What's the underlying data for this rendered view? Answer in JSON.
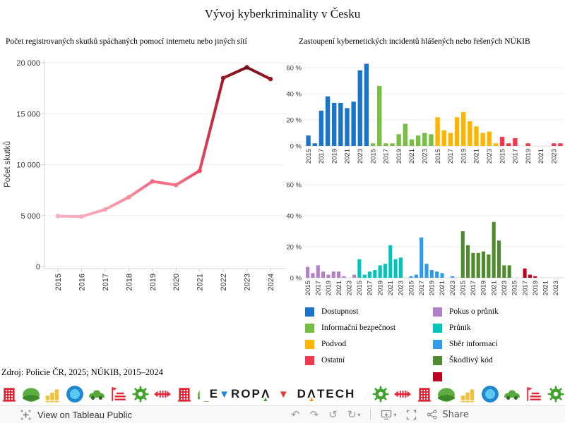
{
  "page_title": "Vývoj kyberkriminality v Česku",
  "source_note": "Zdroj: Policie ČR, 2025; NÚKIB, 2015–2024",
  "chart_data": [
    {
      "id": "line-chart",
      "type": "line",
      "title": "Počet registrovaných skutků spáchaných pomocí internetu nebo jiných sítí",
      "ylabel": "Počet skutků",
      "x": [
        2015,
        2016,
        2017,
        2018,
        2019,
        2020,
        2021,
        2022,
        2023,
        2024
      ],
      "values": [
        4950,
        4900,
        5600,
        6800,
        8350,
        8000,
        9400,
        18500,
        19550,
        18400
      ],
      "ylim": [
        0,
        20000
      ],
      "yticks": [
        0,
        5000,
        10000,
        15000,
        20000
      ],
      "ytick_labels": [
        "0",
        "5 000",
        "10 000",
        "15 000",
        "20 000"
      ],
      "grid": true,
      "point_colors": [
        "#F8AFBE",
        "#F8ACBC",
        "#F7A2B2",
        "#F48DA0",
        "#F06A80",
        "#F1758A",
        "#EC4763",
        "#9E1827",
        "#731019",
        "#9B1726"
      ]
    },
    {
      "id": "bars-top",
      "type": "bar",
      "title": "Zastoupení kybernetických incidentů hlášených nebo řešených NÚKIB",
      "categories": [
        2015,
        2016,
        2017,
        2018,
        2019,
        2020,
        2021,
        2022,
        2023,
        2024
      ],
      "ylim": [
        0,
        65
      ],
      "yticks": [
        0,
        20,
        40,
        60
      ],
      "ytick_labels": [
        "0 %",
        "20 %",
        "40 %",
        "60 %"
      ],
      "series": [
        {
          "name": "Dostupnost",
          "color": "#1A74C9",
          "values": [
            8,
            2,
            27,
            38,
            33,
            33,
            29,
            34,
            58,
            63
          ]
        },
        {
          "name": "Informační bezpečnost",
          "color": "#77BE43",
          "values": [
            2,
            46,
            2,
            2,
            9,
            17,
            5,
            8,
            10,
            9
          ]
        },
        {
          "name": "Podvod",
          "color": "#FFB400",
          "values": [
            22,
            12,
            10,
            22,
            26,
            19,
            15,
            10,
            11,
            2
          ]
        },
        {
          "name": "Ostatní",
          "color": "#F2374F",
          "values": [
            7,
            2,
            6,
            0,
            2,
            0,
            0,
            0,
            2,
            2
          ]
        }
      ]
    },
    {
      "id": "bars-bottom",
      "type": "bar",
      "title": "",
      "categories": [
        2015,
        2016,
        2017,
        2018,
        2019,
        2020,
        2021,
        2022,
        2023,
        2024
      ],
      "ylim": [
        0,
        65
      ],
      "yticks": [
        0,
        20,
        40,
        60
      ],
      "ytick_labels": [
        "0 %",
        "20 %",
        "40 %",
        "60 %"
      ],
      "series": [
        {
          "name": "Pokus o průnik",
          "color": "#B27FC9",
          "values": [
            7,
            3,
            8,
            4,
            2,
            4,
            4,
            1,
            0,
            2
          ]
        },
        {
          "name": "Průnik",
          "color": "#00C4BE",
          "values": [
            12,
            2,
            4,
            5,
            8,
            9,
            21,
            12,
            13,
            0
          ]
        },
        {
          "name": "Sběr informací",
          "color": "#2E9CEB",
          "values": [
            1,
            2,
            26,
            9,
            5,
            4,
            3,
            0,
            1,
            0
          ]
        },
        {
          "name": "Škodlivý kód",
          "color": "#4E8A2E",
          "values": [
            30,
            21,
            16,
            16,
            17,
            15,
            36,
            24,
            8,
            8
          ]
        },
        {
          "name": "",
          "color": "#C0001E",
          "values": [
            0,
            0,
            6,
            2,
            1,
            0,
            0,
            0,
            0,
            0
          ]
        }
      ]
    }
  ],
  "legend": {
    "left_column": [
      {
        "label": "Dostupnost",
        "color": "#1A74C9"
      },
      {
        "label": "Informační bezpečnost",
        "color": "#77BE43"
      },
      {
        "label": "Podvod",
        "color": "#FFB400"
      },
      {
        "label": "Ostatní",
        "color": "#F2374F"
      }
    ],
    "right_column": [
      {
        "label": "Pokus o průnik",
        "color": "#B27FC9"
      },
      {
        "label": "Průnik",
        "color": "#00C4BE"
      },
      {
        "label": "Sběr informací",
        "color": "#2E9CEB"
      },
      {
        "label": "Škodlivý kód",
        "color": "#4E8A2E"
      },
      {
        "label": "",
        "color": "#C0001E"
      }
    ]
  },
  "logo": {
    "word1": "EVROPA",
    "word2": "V",
    "word3": "DATECH",
    "accent_blue": "#1E88E5",
    "accent_green": "#43A047",
    "accent_red": "#E53935",
    "accent_orange": "#FB8C00"
  },
  "decorative_icons": {
    "left": [
      "building",
      "blob",
      "bars",
      "circle",
      "car",
      "chart",
      "gear",
      "arrows",
      "building",
      "blob"
    ],
    "right": [
      "chart",
      "gear",
      "arrows",
      "building",
      "blob",
      "bars",
      "circle",
      "car",
      "chart",
      "gear"
    ],
    "colors": {
      "blob": "#5BAD3F",
      "bars": "#F0C23C",
      "circle": "#1F86D2",
      "car": "#55A83C",
      "chart": "#E02838",
      "gear": "#3FA32E",
      "arrows": "#E02838",
      "building": "#D82535"
    }
  },
  "toolbar": {
    "view_label": "View on Tableau Public",
    "share_label": "Share",
    "icons": [
      "undo",
      "redo",
      "revert",
      "refresh",
      "download",
      "fullscreen",
      "share"
    ]
  }
}
